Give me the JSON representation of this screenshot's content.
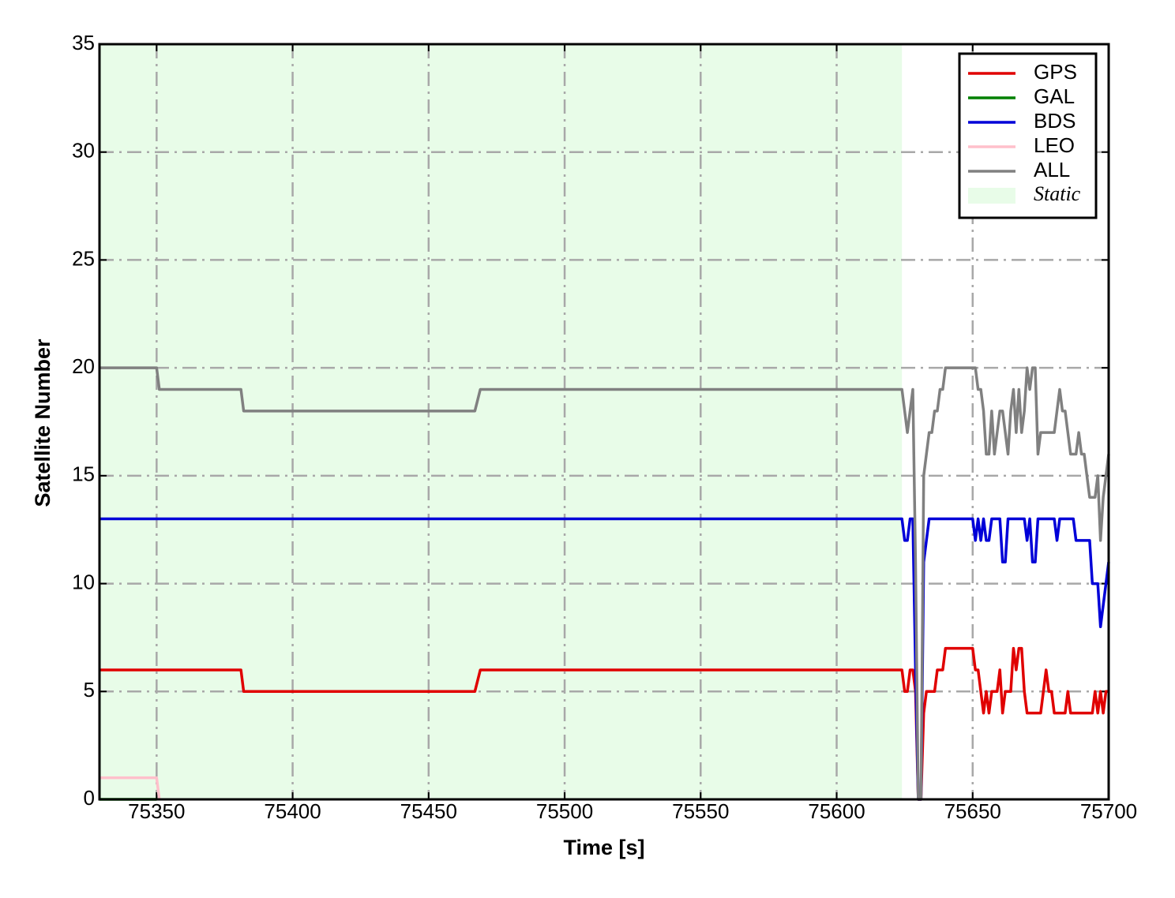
{
  "chart_data": {
    "type": "line",
    "xlabel": "Time [s]",
    "ylabel": "Satellite Number",
    "xlim": [
      75329,
      75700
    ],
    "ylim": [
      0,
      35
    ],
    "xticks": [
      75350,
      75400,
      75450,
      75500,
      75550,
      75600,
      75650,
      75700
    ],
    "yticks": [
      0,
      5,
      10,
      15,
      20,
      25,
      30,
      35
    ],
    "grid": true,
    "legend": "upper right",
    "static_region": {
      "label": "Static",
      "color": "#e8fce8",
      "start": 75329,
      "end": 75624
    },
    "x": [
      75329,
      75350,
      75351,
      75381,
      75382,
      75467,
      75469,
      75624,
      75625,
      75626,
      75627,
      75628,
      75629,
      75630,
      75631,
      75632,
      75633,
      75634,
      75635,
      75636,
      75637,
      75638,
      75639,
      75640,
      75641,
      75642,
      75643,
      75644,
      75645,
      75646,
      75647,
      75648,
      75649,
      75650,
      75651,
      75652,
      75653,
      75654,
      75655,
      75656,
      75657,
      75658,
      75659,
      75660,
      75661,
      75662,
      75663,
      75664,
      75665,
      75666,
      75667,
      75668,
      75669,
      75670,
      75671,
      75672,
      75673,
      75674,
      75675,
      75676,
      75677,
      75678,
      75679,
      75680,
      75681,
      75682,
      75683,
      75684,
      75685,
      75686,
      75687,
      75688,
      75689,
      75690,
      75691,
      75692,
      75693,
      75694,
      75695,
      75696,
      75697,
      75698,
      75699,
      75700
    ],
    "series": [
      {
        "name": "GPS",
        "color": "#e00000",
        "values": [
          6,
          6,
          6,
          6,
          5,
          5,
          6,
          6,
          5,
          5,
          6,
          6,
          5,
          0,
          0,
          4,
          5,
          5,
          5,
          5,
          6,
          6,
          6,
          7,
          7,
          7,
          7,
          7,
          7,
          7,
          7,
          7,
          7,
          7,
          6,
          6,
          5,
          4,
          5,
          4,
          5,
          5,
          5,
          6,
          4,
          5,
          5,
          5,
          7,
          6,
          7,
          7,
          5,
          4,
          4,
          4,
          4,
          4,
          4,
          5,
          6,
          5,
          5,
          4,
          4,
          4,
          4,
          4,
          5,
          4,
          4,
          4,
          4,
          4,
          4,
          4,
          4,
          4,
          5,
          4,
          5,
          4,
          5,
          5
        ]
      },
      {
        "name": "GAL",
        "color": "#008000",
        "x": [
          75329,
          75350
        ],
        "values": [
          0,
          0
        ]
      },
      {
        "name": "BDS",
        "color": "#0000d8",
        "values": [
          13,
          13,
          13,
          13,
          13,
          13,
          13,
          13,
          12,
          12,
          13,
          13,
          6,
          0,
          0,
          11,
          12,
          13,
          13,
          13,
          13,
          13,
          13,
          13,
          13,
          13,
          13,
          13,
          13,
          13,
          13,
          13,
          13,
          13,
          12,
          13,
          12,
          13,
          12,
          12,
          13,
          13,
          13,
          13,
          11,
          11,
          13,
          13,
          13,
          13,
          13,
          13,
          13,
          12,
          13,
          11,
          11,
          13,
          13,
          13,
          13,
          13,
          13,
          13,
          12,
          13,
          13,
          13,
          13,
          13,
          13,
          12,
          12,
          12,
          12,
          12,
          12,
          10,
          10,
          10,
          8,
          9,
          10,
          11
        ]
      },
      {
        "name": "LEO",
        "color": "#ffc0cb",
        "x": [
          75329,
          75350,
          75351
        ],
        "values": [
          1,
          1,
          0
        ]
      },
      {
        "name": "ALL",
        "color": "#808080",
        "values": [
          20,
          20,
          19,
          19,
          18,
          18,
          19,
          19,
          18,
          17,
          18,
          19,
          11,
          0,
          0,
          15,
          16,
          17,
          17,
          18,
          18,
          19,
          19,
          20,
          20,
          20,
          20,
          20,
          20,
          20,
          20,
          20,
          20,
          20,
          20,
          19,
          19,
          18,
          16,
          16,
          18,
          16,
          17,
          18,
          18,
          17,
          16,
          18,
          19,
          17,
          19,
          17,
          18,
          20,
          19,
          20,
          20,
          16,
          17,
          17,
          17,
          17,
          17,
          17,
          18,
          19,
          18,
          18,
          17,
          16,
          16,
          16,
          17,
          16,
          16,
          15,
          14,
          14,
          14,
          15,
          12,
          14,
          15,
          16
        ]
      }
    ]
  }
}
